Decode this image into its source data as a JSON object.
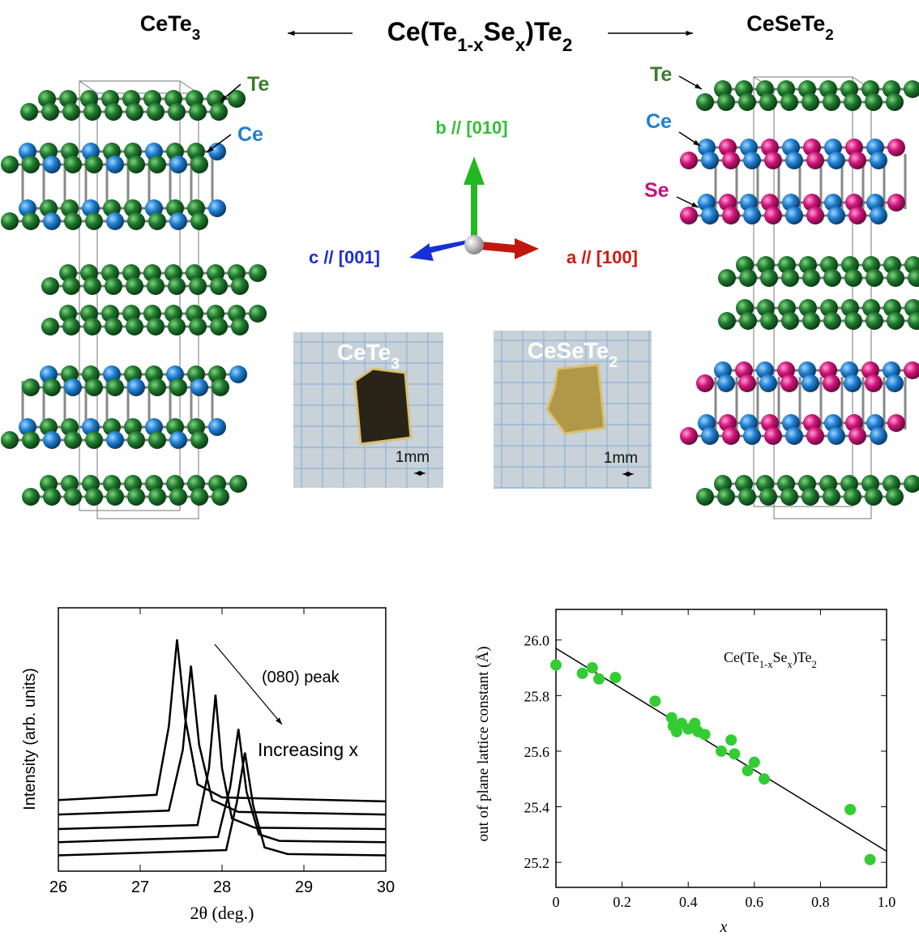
{
  "figure": {
    "left_title": [
      "CeTe",
      "3"
    ],
    "center_title": [
      "Ce(Te",
      "1-x",
      "Se",
      "x",
      ")Te",
      "2"
    ],
    "right_title": [
      "CeSeTe",
      "2"
    ],
    "left_labels": [
      "Te",
      "Ce"
    ],
    "right_labels": [
      "Te",
      "Ce",
      "Se"
    ],
    "axes": [
      "b // [010]",
      "c // [001]",
      "a // [100]"
    ],
    "photos": [
      {
        "label": [
          "CeTe",
          "3"
        ],
        "scale": "1mm"
      },
      {
        "label": [
          "CeSeTe",
          "2"
        ],
        "scale": "1mm"
      }
    ]
  },
  "chart_data": [
    {
      "type": "line",
      "xlabel": "2θ (deg.)",
      "ylabel": "Intensity (arb. units)",
      "annotations": [
        "(080) peak",
        "Increasing x"
      ],
      "xlim": [
        26,
        30
      ],
      "xticks": [
        26,
        27,
        28,
        29,
        30
      ],
      "ylim": [
        0,
        10
      ],
      "series": [
        {
          "color": "#000000",
          "x": [
            26,
            27.2,
            27.35,
            27.45,
            27.55,
            27.7,
            28,
            30
          ],
          "values": [
            2.7,
            2.9,
            5.5,
            8.8,
            5.8,
            3.3,
            2.8,
            2.65
          ]
        },
        {
          "color": "#000000",
          "x": [
            26,
            27.35,
            27.52,
            27.62,
            27.72,
            27.88,
            28.2,
            30
          ],
          "values": [
            2.15,
            2.3,
            4.6,
            7.8,
            4.8,
            2.7,
            2.25,
            2.15
          ]
        },
        {
          "color": "#000000",
          "x": [
            26,
            27.7,
            27.84,
            27.92,
            28.0,
            28.12,
            28.4,
            30
          ],
          "values": [
            1.6,
            1.75,
            3.9,
            6.7,
            3.9,
            2.0,
            1.65,
            1.6
          ]
        },
        {
          "color": "#000000",
          "x": [
            26,
            27.95,
            28.1,
            28.2,
            28.3,
            28.45,
            28.7,
            30
          ],
          "values": [
            1.1,
            1.3,
            3.2,
            5.4,
            3.0,
            1.4,
            1.15,
            1.1
          ]
        },
        {
          "color": "#000000",
          "x": [
            26,
            28.05,
            28.18,
            28.28,
            28.38,
            28.52,
            28.8,
            30
          ],
          "values": [
            0.6,
            0.8,
            2.6,
            4.5,
            2.5,
            0.9,
            0.65,
            0.6
          ]
        }
      ]
    },
    {
      "type": "scatter",
      "xlabel": "x",
      "ylabel": "out of plane lattice constant  (Å)",
      "annotation": [
        "Ce(Te",
        "1-x",
        "Se",
        "x",
        ")Te",
        "2"
      ],
      "xlim": [
        0,
        1
      ],
      "xticks": [
        0,
        0.2,
        0.4,
        0.6,
        0.8,
        {
          "value": 1,
          "label": "1.0"
        }
      ],
      "ylim": [
        25.11,
        26.11
      ],
      "yticks": [
        25.2,
        25.4,
        25.6,
        25.8,
        {
          "value": 26,
          "label": "26.0"
        }
      ],
      "points": {
        "color": "#33cc33",
        "x": [
          0,
          0.08,
          0.11,
          0.13,
          0.18,
          0.3,
          0.35,
          0.355,
          0.365,
          0.38,
          0.4,
          0.42,
          0.43,
          0.45,
          0.5,
          0.53,
          0.54,
          0.58,
          0.6,
          0.63,
          0.89,
          0.95
        ],
        "values": [
          25.91,
          25.88,
          25.9,
          25.86,
          25.865,
          25.78,
          25.72,
          25.69,
          25.67,
          25.7,
          25.68,
          25.7,
          25.67,
          25.66,
          25.6,
          25.64,
          25.59,
          25.53,
          25.56,
          25.5,
          25.39,
          25.21
        ]
      },
      "fit": {
        "color": "#000000",
        "x": [
          0,
          1
        ],
        "values": [
          25.97,
          25.24
        ]
      }
    }
  ]
}
